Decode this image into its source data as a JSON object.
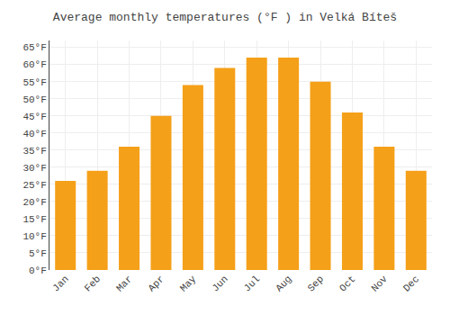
{
  "chart_data": {
    "type": "bar",
    "title": "Average monthly temperatures (°F ) in Velká Bíteš",
    "categories": [
      "Jan",
      "Feb",
      "Mar",
      "Apr",
      "May",
      "Jun",
      "Jul",
      "Aug",
      "Sep",
      "Oct",
      "Nov",
      "Dec"
    ],
    "values": [
      26,
      29,
      36,
      45,
      54,
      59,
      62,
      62,
      55,
      46,
      36,
      29
    ],
    "color": "#F5A019",
    "ylim": [
      0,
      67
    ],
    "yticks": [
      {
        "value": 0,
        "label": "0°F"
      },
      {
        "value": 5,
        "label": "5°F"
      },
      {
        "value": 10,
        "label": "10°F"
      },
      {
        "value": 15,
        "label": "15°F"
      },
      {
        "value": 20,
        "label": "20°F"
      },
      {
        "value": 25,
        "label": "25°F"
      },
      {
        "value": 30,
        "label": "30°F"
      },
      {
        "value": 35,
        "label": "35°F"
      },
      {
        "value": 40,
        "label": "40°F"
      },
      {
        "value": 45,
        "label": "45°F"
      },
      {
        "value": 50,
        "label": "50°F"
      },
      {
        "value": 55,
        "label": "55°F"
      },
      {
        "value": 60,
        "label": "60°F"
      },
      {
        "value": 65,
        "label": "65°F"
      }
    ],
    "grid": true
  }
}
